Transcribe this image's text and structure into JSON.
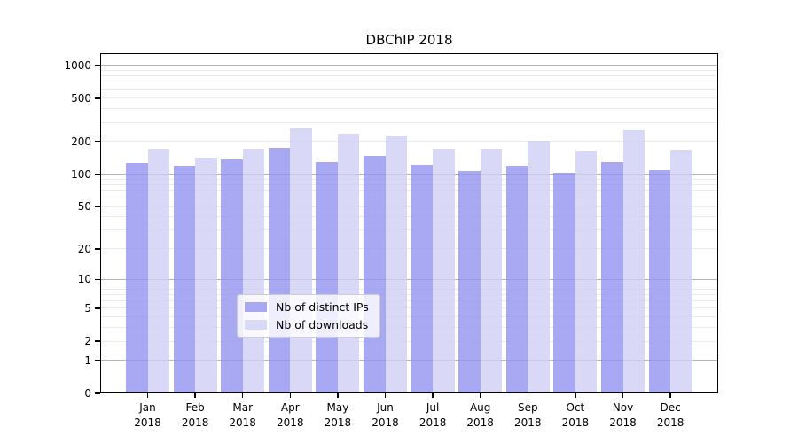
{
  "title_bar": {
    "title": "DBChIP 2018"
  },
  "chart_data": {
    "type": "bar",
    "title": "DBChIP 2018",
    "y_scale": "log1p",
    "ylim": [
      0,
      1293
    ],
    "yticks": [
      0,
      1,
      2,
      5,
      10,
      20,
      50,
      100,
      200,
      500,
      1000
    ],
    "grid": true,
    "legend_position": "inside-bottom-center",
    "categories": [
      "Jan",
      "Feb",
      "Mar",
      "Apr",
      "May",
      "Jun",
      "Jul",
      "Aug",
      "Sep",
      "Oct",
      "Nov",
      "Dec"
    ],
    "category_year": "2018",
    "series": [
      {
        "name": "Nb of distinct IPs",
        "color": "rgba(148,148,240,0.8)",
        "values": [
          128,
          119,
          136,
          176,
          130,
          148,
          123,
          108,
          120,
          104,
          129,
          110
        ]
      },
      {
        "name": "Nb of downloads",
        "color": "rgba(208,208,245,0.8)",
        "values": [
          170,
          143,
          170,
          265,
          236,
          229,
          173,
          173,
          203,
          164,
          252,
          169
        ]
      }
    ]
  },
  "style": {
    "background": "#ffffff",
    "spine_color": "#000000",
    "major_grid_color": "#b3b3b3",
    "minor_grid_color": "#eaeaea",
    "tick_label_color": "#000000",
    "title_color": "#000000",
    "legend_bg": "rgba(255,255,255,0.8)",
    "legend_border": "#cccccc"
  }
}
